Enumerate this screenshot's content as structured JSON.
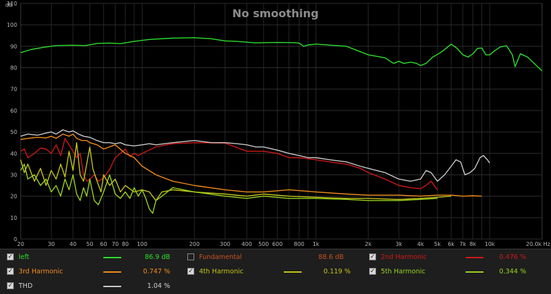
{
  "chart_data": {
    "type": "line",
    "title": "No smoothing",
    "ylabel": "dB",
    "xlabel": "",
    "xscale": "log",
    "xlim": [
      20,
      20000
    ],
    "ylim": [
      0,
      110
    ],
    "x_ticks": [
      20,
      30,
      40,
      50,
      60,
      70,
      80,
      100,
      200,
      300,
      400,
      500,
      600,
      800,
      1000,
      2000,
      3000,
      4000,
      5000,
      6000,
      7000,
      8000,
      10000,
      20000
    ],
    "x_tick_labels": [
      "20",
      "30",
      "40",
      "50",
      "60",
      "70",
      "80",
      "100",
      "200",
      "300",
      "400",
      "500",
      "600",
      "800",
      "1k",
      "2k",
      "3k",
      "4k",
      "5k",
      "6k",
      "7k",
      "8k",
      "10k",
      "20.0k Hz"
    ],
    "y_ticks": [
      0,
      10,
      20,
      30,
      40,
      50,
      60,
      70,
      80,
      90,
      100,
      110
    ],
    "grid": true,
    "series": [
      {
        "name": "left",
        "color": "#2de02d",
        "value_text": "86.9 dB",
        "points": [
          [
            20,
            87
          ],
          [
            23,
            88.5
          ],
          [
            27,
            89.5
          ],
          [
            32,
            90.3
          ],
          [
            40,
            90.5
          ],
          [
            47,
            90.3
          ],
          [
            55,
            91.3
          ],
          [
            65,
            91.5
          ],
          [
            75,
            91.2
          ],
          [
            90,
            92.3
          ],
          [
            110,
            93.2
          ],
          [
            150,
            93.8
          ],
          [
            200,
            94
          ],
          [
            250,
            93.5
          ],
          [
            300,
            92.5
          ],
          [
            350,
            92.3
          ],
          [
            450,
            91.6
          ],
          [
            600,
            91.8
          ],
          [
            730,
            91.7
          ],
          [
            800,
            91.5
          ],
          [
            850,
            90
          ],
          [
            900,
            90.6
          ],
          [
            1000,
            91
          ],
          [
            1500,
            90
          ],
          [
            2000,
            86
          ],
          [
            2500,
            84.6
          ],
          [
            2800,
            82
          ],
          [
            3000,
            83
          ],
          [
            3200,
            82
          ],
          [
            3500,
            82.6
          ],
          [
            3800,
            82
          ],
          [
            4000,
            81
          ],
          [
            4300,
            82
          ],
          [
            4700,
            85
          ],
          [
            5200,
            87
          ],
          [
            5700,
            89.5
          ],
          [
            6000,
            91
          ],
          [
            6500,
            89
          ],
          [
            7000,
            86
          ],
          [
            7500,
            85
          ],
          [
            8000,
            86.5
          ],
          [
            8500,
            89
          ],
          [
            9000,
            89.2
          ],
          [
            9500,
            86
          ],
          [
            10000,
            86
          ],
          [
            10700,
            88
          ],
          [
            11500,
            89.7
          ],
          [
            12500,
            90.2
          ],
          [
            13500,
            86
          ],
          [
            14000,
            80.5
          ],
          [
            15000,
            86.5
          ],
          [
            16500,
            85
          ],
          [
            18000,
            82
          ],
          [
            20000,
            78.5
          ]
        ]
      },
      {
        "name": "2nd Harmonic",
        "color": "#d01818",
        "value_text": "0.476 %",
        "points": [
          [
            20,
            41
          ],
          [
            21,
            42
          ],
          [
            22,
            38
          ],
          [
            24,
            40
          ],
          [
            26,
            42.5
          ],
          [
            28,
            42
          ],
          [
            30,
            40
          ],
          [
            32,
            44
          ],
          [
            34,
            39
          ],
          [
            36,
            47
          ],
          [
            38,
            44
          ],
          [
            40,
            41
          ],
          [
            42,
            38
          ],
          [
            44,
            40
          ],
          [
            46,
            30
          ],
          [
            48,
            27
          ],
          [
            50,
            28
          ],
          [
            53,
            30
          ],
          [
            56,
            27
          ],
          [
            60,
            28.5
          ],
          [
            65,
            32.5
          ],
          [
            70,
            38
          ],
          [
            75,
            40
          ],
          [
            80,
            42
          ],
          [
            85,
            38.5
          ],
          [
            90,
            40
          ],
          [
            95,
            39
          ],
          [
            100,
            40
          ],
          [
            120,
            43
          ],
          [
            150,
            44.5
          ],
          [
            200,
            45
          ],
          [
            300,
            44.8
          ],
          [
            400,
            41
          ],
          [
            500,
            41
          ],
          [
            600,
            40
          ],
          [
            700,
            38
          ],
          [
            800,
            38
          ],
          [
            900,
            37.5
          ],
          [
            1000,
            37
          ],
          [
            1200,
            36
          ],
          [
            1500,
            35
          ],
          [
            1800,
            33
          ],
          [
            2000,
            31
          ],
          [
            2500,
            28
          ],
          [
            3000,
            25
          ],
          [
            3500,
            24
          ],
          [
            4000,
            23.5
          ],
          [
            4300,
            25
          ],
          [
            4600,
            27
          ],
          [
            5000,
            23
          ]
        ]
      },
      {
        "name": "3rd Harmonic",
        "color": "#f08c1a",
        "value_text": "0.747 %",
        "points": [
          [
            20,
            46.5
          ],
          [
            22,
            47
          ],
          [
            25,
            47.5
          ],
          [
            28,
            47.2
          ],
          [
            30,
            48
          ],
          [
            32,
            47
          ],
          [
            35,
            49
          ],
          [
            38,
            48
          ],
          [
            40,
            49
          ],
          [
            42,
            47
          ],
          [
            45,
            46
          ],
          [
            48,
            46
          ],
          [
            50,
            45
          ],
          [
            55,
            44
          ],
          [
            60,
            42
          ],
          [
            70,
            44
          ],
          [
            80,
            40
          ],
          [
            90,
            38
          ],
          [
            100,
            34
          ],
          [
            120,
            30
          ],
          [
            150,
            27
          ],
          [
            200,
            25
          ],
          [
            300,
            23
          ],
          [
            400,
            22
          ],
          [
            500,
            22
          ],
          [
            700,
            23
          ],
          [
            1000,
            22
          ],
          [
            1500,
            21
          ],
          [
            2000,
            20.5
          ],
          [
            3000,
            20.5
          ],
          [
            4000,
            20
          ],
          [
            5000,
            20.5
          ],
          [
            6000,
            20.5
          ],
          [
            7000,
            20
          ],
          [
            8000,
            20.2
          ],
          [
            9000,
            20
          ]
        ]
      },
      {
        "name": "4th Harmonic",
        "color": "#c4c418",
        "value_text": "0.119 %",
        "points": [
          [
            20,
            37
          ],
          [
            21,
            31
          ],
          [
            22,
            35
          ],
          [
            24,
            27
          ],
          [
            26,
            33
          ],
          [
            28,
            25
          ],
          [
            30,
            32
          ],
          [
            32,
            28
          ],
          [
            34,
            35
          ],
          [
            36,
            29
          ],
          [
            38,
            41
          ],
          [
            40,
            32
          ],
          [
            42,
            45
          ],
          [
            44,
            30
          ],
          [
            46,
            27
          ],
          [
            48,
            35
          ],
          [
            50,
            43
          ],
          [
            52,
            33
          ],
          [
            55,
            27
          ],
          [
            58,
            22
          ],
          [
            60,
            30
          ],
          [
            65,
            25
          ],
          [
            70,
            28
          ],
          [
            75,
            22
          ],
          [
            80,
            25
          ],
          [
            90,
            22
          ],
          [
            100,
            23
          ],
          [
            110,
            22
          ],
          [
            120,
            18
          ],
          [
            130,
            22
          ],
          [
            150,
            23
          ],
          [
            200,
            22
          ],
          [
            300,
            21
          ],
          [
            400,
            20
          ],
          [
            500,
            21
          ],
          [
            700,
            20
          ],
          [
            1000,
            19.5
          ],
          [
            1500,
            19
          ],
          [
            2000,
            19
          ],
          [
            3000,
            18.5
          ],
          [
            4000,
            19
          ],
          [
            5000,
            19.5
          ],
          [
            6000,
            20
          ]
        ]
      },
      {
        "name": "5th Harmonic",
        "color": "#9ad21c",
        "value_text": "0.344 %",
        "points": [
          [
            20,
            32
          ],
          [
            21,
            35
          ],
          [
            22,
            28
          ],
          [
            24,
            30
          ],
          [
            26,
            25
          ],
          [
            28,
            28
          ],
          [
            30,
            22
          ],
          [
            32,
            25
          ],
          [
            34,
            20
          ],
          [
            36,
            28
          ],
          [
            38,
            23
          ],
          [
            40,
            30
          ],
          [
            42,
            21
          ],
          [
            44,
            18
          ],
          [
            46,
            24
          ],
          [
            48,
            20
          ],
          [
            50,
            28
          ],
          [
            53,
            18
          ],
          [
            56,
            16
          ],
          [
            60,
            22
          ],
          [
            65,
            30
          ],
          [
            70,
            21
          ],
          [
            75,
            19
          ],
          [
            80,
            22
          ],
          [
            85,
            19
          ],
          [
            90,
            24
          ],
          [
            95,
            20
          ],
          [
            100,
            23
          ],
          [
            105,
            19
          ],
          [
            110,
            14
          ],
          [
            115,
            12
          ],
          [
            120,
            18
          ],
          [
            130,
            20
          ],
          [
            150,
            24
          ],
          [
            200,
            22
          ],
          [
            300,
            20
          ],
          [
            400,
            19
          ],
          [
            500,
            20
          ],
          [
            700,
            19
          ],
          [
            1000,
            19
          ],
          [
            1500,
            18.5
          ],
          [
            2000,
            18
          ],
          [
            3000,
            18
          ],
          [
            4000,
            18.5
          ],
          [
            5000,
            19
          ]
        ]
      },
      {
        "name": "THD",
        "color": "#c8c8c8",
        "value_text": "1.04 %",
        "points": [
          [
            20,
            48
          ],
          [
            22,
            49
          ],
          [
            25,
            48.5
          ],
          [
            28,
            49.5
          ],
          [
            30,
            50
          ],
          [
            32,
            49
          ],
          [
            35,
            51
          ],
          [
            38,
            50
          ],
          [
            40,
            50.5
          ],
          [
            43,
            49
          ],
          [
            46,
            48
          ],
          [
            50,
            47.5
          ],
          [
            55,
            46
          ],
          [
            60,
            45
          ],
          [
            65,
            45
          ],
          [
            70,
            44.5
          ],
          [
            75,
            45
          ],
          [
            80,
            44
          ],
          [
            90,
            43.5
          ],
          [
            100,
            44
          ],
          [
            110,
            44.5
          ],
          [
            120,
            44
          ],
          [
            150,
            45
          ],
          [
            200,
            46
          ],
          [
            250,
            45
          ],
          [
            300,
            45
          ],
          [
            350,
            44.5
          ],
          [
            400,
            44
          ],
          [
            450,
            43
          ],
          [
            500,
            43
          ],
          [
            600,
            41.5
          ],
          [
            700,
            40
          ],
          [
            800,
            39
          ],
          [
            900,
            38
          ],
          [
            1000,
            38
          ],
          [
            1200,
            37
          ],
          [
            1500,
            36
          ],
          [
            1800,
            34
          ],
          [
            2000,
            33
          ],
          [
            2500,
            31
          ],
          [
            3000,
            28
          ],
          [
            3500,
            27
          ],
          [
            4000,
            28
          ],
          [
            4300,
            32
          ],
          [
            4600,
            31
          ],
          [
            5000,
            27
          ],
          [
            5500,
            30
          ],
          [
            6000,
            34
          ],
          [
            6400,
            37
          ],
          [
            6800,
            36
          ],
          [
            7200,
            30
          ],
          [
            7700,
            31
          ],
          [
            8200,
            33
          ],
          [
            8800,
            38
          ],
          [
            9200,
            39
          ],
          [
            9700,
            37
          ],
          [
            10000,
            35.5
          ]
        ]
      }
    ]
  },
  "legend": [
    {
      "label": "left",
      "checked": true,
      "color": "#2de02d",
      "value": "86.9 dB"
    },
    {
      "label": "Fundamental",
      "checked": false,
      "color": "#c8501e",
      "value": "88.6 dB"
    },
    {
      "label": "2nd Harmonic",
      "checked": true,
      "color": "#d01818",
      "value": "0.476 %"
    },
    {
      "label": "3rd Harmonic",
      "checked": true,
      "color": "#f08c1a",
      "value": "0.747 %"
    },
    {
      "label": "4th Harmonic",
      "checked": true,
      "color": "#c4c418",
      "value": "0.119 %"
    },
    {
      "label": "5th Harmonic",
      "checked": true,
      "color": "#9ad21c",
      "value": "0.344 %"
    },
    {
      "label": "THD",
      "checked": true,
      "color": "#c8c8c8",
      "value": "1.04 %"
    }
  ]
}
